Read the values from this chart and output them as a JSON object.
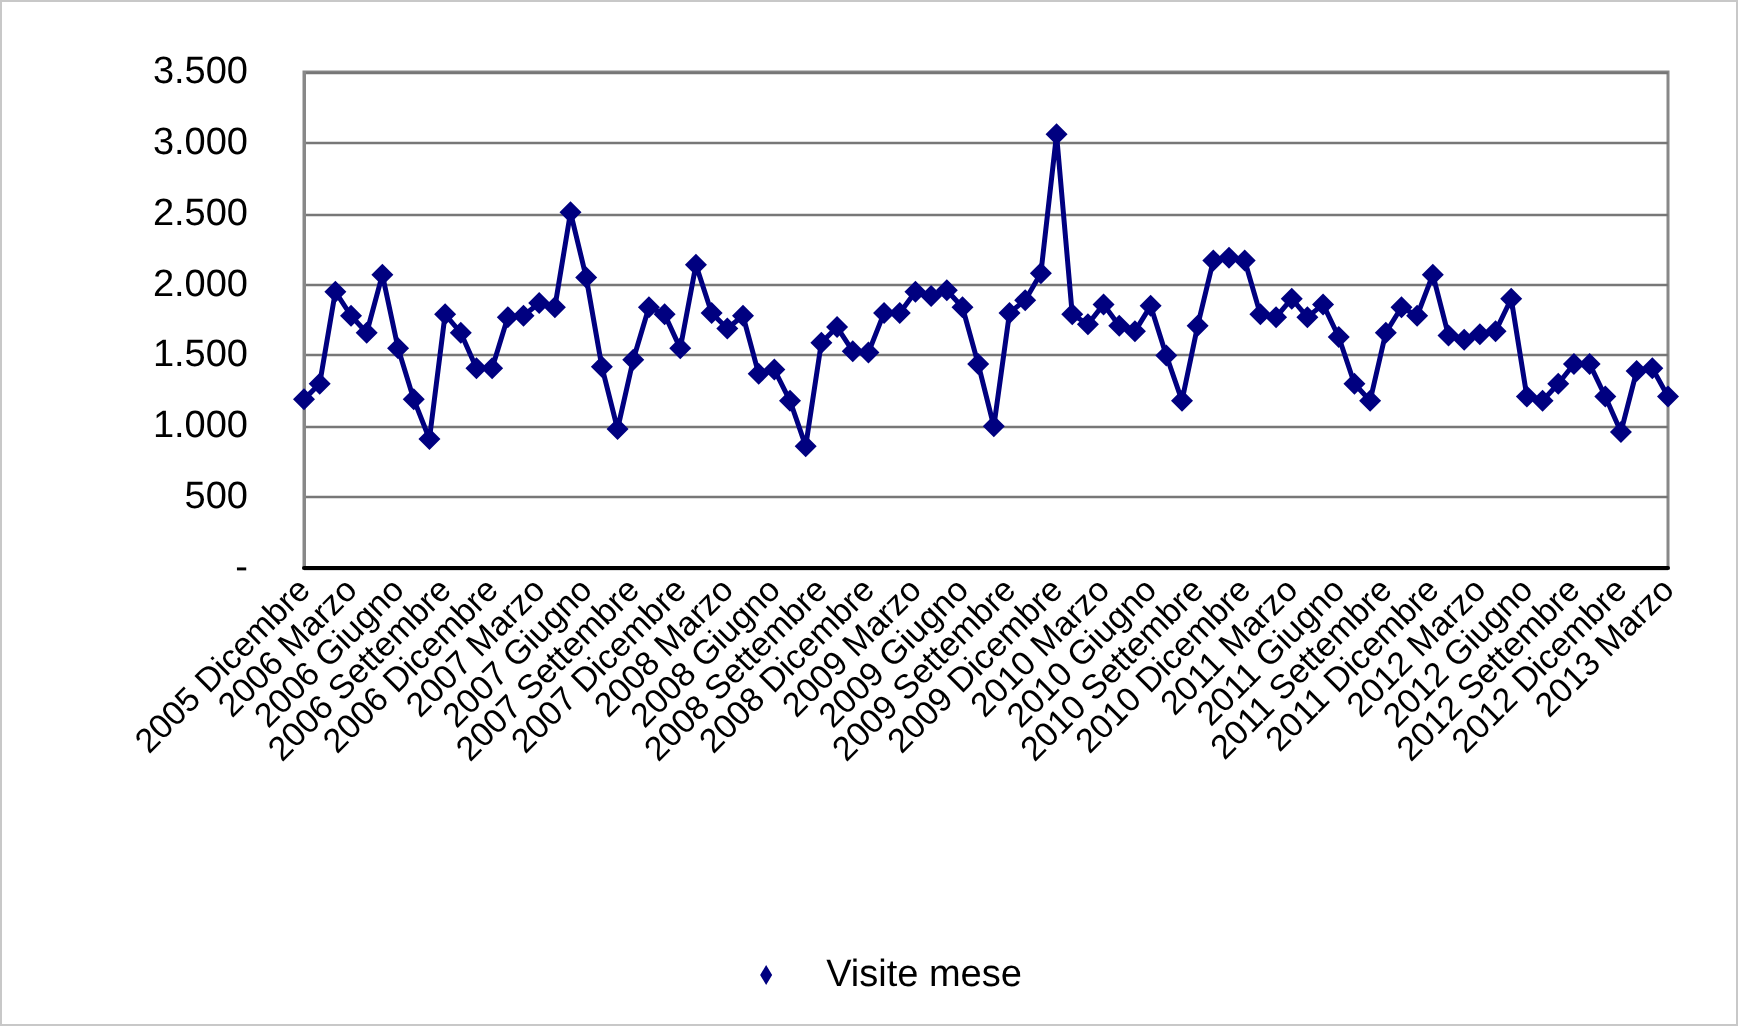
{
  "chart_data": {
    "type": "line",
    "categories": [
      "2005 Dicembre",
      null,
      null,
      "2006 Marzo",
      null,
      null,
      "2006 Giugno",
      null,
      null,
      "2006 Settembre",
      null,
      null,
      "2006 Dicembre",
      null,
      null,
      "2007 Marzo",
      null,
      null,
      "2007 Giugno",
      null,
      null,
      "2007 Settembre",
      null,
      null,
      "2007 Dicembre",
      null,
      null,
      "2008 Marzo",
      null,
      null,
      "2008 Giugno",
      null,
      null,
      "2008 Settembre",
      null,
      null,
      "2008 Dicembre",
      null,
      null,
      "2009 Marzo",
      null,
      null,
      "2009 Giugno",
      null,
      null,
      "2009 Settembre",
      null,
      null,
      "2009 Dicembre",
      null,
      null,
      "2010 Marzo",
      null,
      null,
      "2010 Giugno",
      null,
      null,
      "2010 Settembre",
      null,
      null,
      "2010 Dicembre",
      null,
      null,
      "2011 Marzo",
      null,
      null,
      "2011 Giugno",
      null,
      null,
      "2011 Settembre",
      null,
      null,
      "2011 Dicembre",
      null,
      null,
      "2012 Marzo",
      null,
      null,
      "2012 Giugno",
      null,
      null,
      "2012 Settembre",
      null,
      null,
      "2012 Dicembre",
      null,
      null,
      "2013 Marzo"
    ],
    "series": [
      {
        "name": "Visite mese",
        "color": "#000080",
        "values": [
          1190,
          1300,
          1950,
          1780,
          1660,
          2070,
          1550,
          1190,
          910,
          1790,
          1660,
          1410,
          1410,
          1770,
          1780,
          1870,
          1840,
          2510,
          2050,
          1420,
          980,
          1470,
          1840,
          1790,
          1550,
          2140,
          1800,
          1690,
          1780,
          1370,
          1400,
          1180,
          860,
          1590,
          1700,
          1530,
          1520,
          1800,
          1800,
          1950,
          1920,
          1960,
          1840,
          1440,
          1000,
          1800,
          1890,
          2080,
          3060,
          1790,
          1720,
          1860,
          1710,
          1670,
          1850,
          1500,
          1180,
          1710,
          2170,
          2190,
          2170,
          1790,
          1770,
          1900,
          1770,
          1860,
          1630,
          1300,
          1180,
          1660,
          1840,
          1780,
          2070,
          1640,
          1610,
          1650,
          1670,
          1900,
          1210,
          1180,
          1300,
          1440,
          1440,
          1210,
          960,
          1390,
          1410,
          1210
        ]
      }
    ],
    "ylim": [
      0,
      3500
    ],
    "yticks": [
      {
        "value": 0,
        "label": "-"
      },
      {
        "value": 500,
        "label": "500"
      },
      {
        "value": 1000,
        "label": "1.000"
      },
      {
        "value": 1500,
        "label": "1.500"
      },
      {
        "value": 2000,
        "label": "2.000"
      },
      {
        "value": 2500,
        "label": "2.500"
      },
      {
        "value": 3000,
        "label": "3.000"
      },
      {
        "value": 3500,
        "label": "3.500"
      }
    ],
    "grid": "y",
    "legend": "bottom",
    "marker": "diamond",
    "line_style": "solid"
  }
}
